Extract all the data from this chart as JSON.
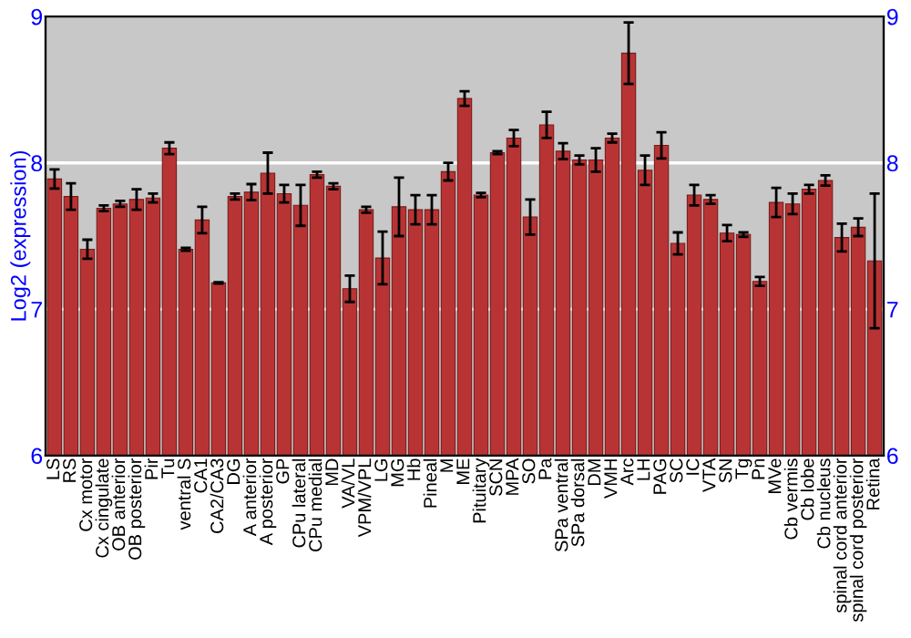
{
  "chart_data": {
    "type": "bar",
    "ylabel": "Log2 (expression)",
    "categories": [
      "LS",
      "RS",
      "Cx motor",
      "Cx cingulate",
      "OB anterior",
      "OB posterior",
      "Pir",
      "Tu",
      "ventral S",
      "CA1",
      "CA2/CA3",
      "DG",
      "A anterior",
      "A posterior",
      "GP",
      "CPu lateral",
      "CPu medial",
      "MD",
      "VA/VL",
      "VPM/VPL",
      "LG",
      "MG",
      "Hb",
      "Pineal",
      "M",
      "ME",
      "Pituitary",
      "SCN",
      "MPA",
      "SO",
      "Pa",
      "SPa ventral",
      "SPa dorsal",
      "DM",
      "VMH",
      "Arc",
      "LH",
      "PAG",
      "SC",
      "IC",
      "VTA",
      "SN",
      "Tg",
      "Pn",
      "MVe",
      "Cb vermis",
      "Cb lobe",
      "Cb nucleus",
      "spinal cord anterior",
      "spinal cord posterior",
      "Retina"
    ],
    "values": [
      7.89,
      7.77,
      7.41,
      7.69,
      7.72,
      7.75,
      7.76,
      8.1,
      7.41,
      7.61,
      7.18,
      7.77,
      7.8,
      7.93,
      7.79,
      7.71,
      7.92,
      7.84,
      7.14,
      7.68,
      7.35,
      7.7,
      7.68,
      7.68,
      7.94,
      8.44,
      7.78,
      8.07,
      8.17,
      7.63,
      8.26,
      8.08,
      8.02,
      8.02,
      8.17,
      8.75,
      7.95,
      8.12,
      7.45,
      7.78,
      7.75,
      7.52,
      7.51,
      7.19,
      7.73,
      7.72,
      7.82,
      7.88,
      7.49,
      7.56,
      7.33
    ],
    "errors": [
      0.065,
      0.09,
      0.065,
      0.02,
      0.02,
      0.07,
      0.03,
      0.04,
      0.01,
      0.09,
      0.005,
      0.02,
      0.055,
      0.14,
      0.06,
      0.14,
      0.02,
      0.02,
      0.09,
      0.02,
      0.18,
      0.2,
      0.1,
      0.1,
      0.06,
      0.05,
      0.015,
      0.01,
      0.055,
      0.12,
      0.09,
      0.055,
      0.03,
      0.08,
      0.03,
      0.21,
      0.1,
      0.09,
      0.075,
      0.07,
      0.03,
      0.055,
      0.015,
      0.03,
      0.1,
      0.07,
      0.03,
      0.035,
      0.095,
      0.06,
      0.46
    ],
    "color": "#b83434",
    "ylim": [
      6,
      9
    ],
    "yticks": [
      6,
      7,
      8,
      9
    ],
    "y2lim": [
      6,
      9
    ],
    "y2ticks": [
      6,
      7,
      8,
      9
    ],
    "grid": "y",
    "legend": false
  }
}
